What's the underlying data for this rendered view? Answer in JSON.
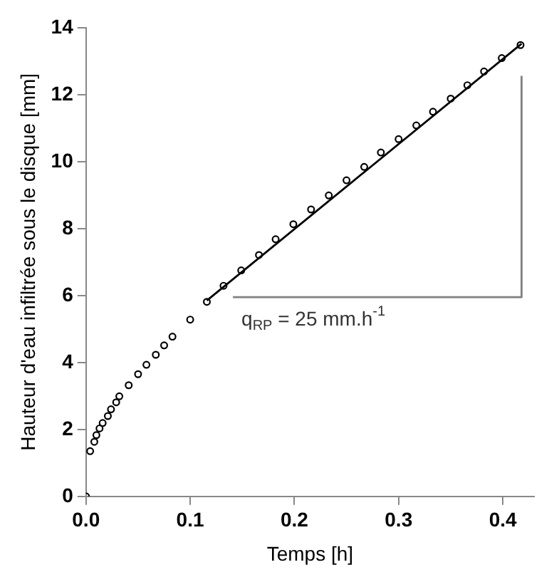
{
  "chart_data": {
    "type": "scatter",
    "xlabel": "Temps [h]",
    "ylabel": "Hauteur d'eau infiltrée sous le disque [mm]",
    "xlim": [
      0,
      0.43
    ],
    "ylim": [
      0,
      14
    ],
    "xticks": [
      {
        "value": 0,
        "label": "0.0"
      },
      0.1,
      0.2,
      0.3,
      0.4
    ],
    "yticks": [
      0,
      2,
      4,
      6,
      8,
      10,
      12,
      14
    ],
    "grid": false,
    "legend": false,
    "marker": "circle",
    "series": [
      {
        "color": "#000000",
        "x": [
          0,
          0.004,
          0.008,
          0.01,
          0.013,
          0.016,
          0.021,
          0.024,
          0.029,
          0.032,
          0.041,
          0.05,
          0.058,
          0.067,
          0.075,
          0.083,
          0.1,
          0.116,
          0.132,
          0.149,
          0.166,
          0.182,
          0.199,
          0.216,
          0.233,
          0.25,
          0.267,
          0.283,
          0.3,
          0.317,
          0.333,
          0.35,
          0.366,
          0.382,
          0.399,
          0.417
        ],
        "values": [
          0,
          1.35,
          1.63,
          1.83,
          2.03,
          2.19,
          2.4,
          2.6,
          2.81,
          2.99,
          3.32,
          3.65,
          3.93,
          4.23,
          4.51,
          4.77,
          5.28,
          5.81,
          6.29,
          6.75,
          7.21,
          7.68,
          8.13,
          8.57,
          8.99,
          9.44,
          9.84,
          10.27,
          10.67,
          11.08,
          11.49,
          11.88,
          12.28,
          12.69,
          13.09,
          13.48
        ]
      },
      {
        "type": "line",
        "color": "#000000",
        "marker": "none",
        "line_style": "solid",
        "x": [
          0.116,
          0.418
        ],
        "values": [
          5.85,
          13.52
        ]
      },
      {
        "type": "line",
        "color": "#808080",
        "marker": "none",
        "line_style": "solid",
        "x": [
          0.141,
          0.418,
          0.418
        ],
        "values": [
          5.95,
          5.95,
          12.56
        ]
      }
    ],
    "annotations": [
      "q$_{RP}$ = 25 mm.h$^{-1}$"
    ]
  }
}
